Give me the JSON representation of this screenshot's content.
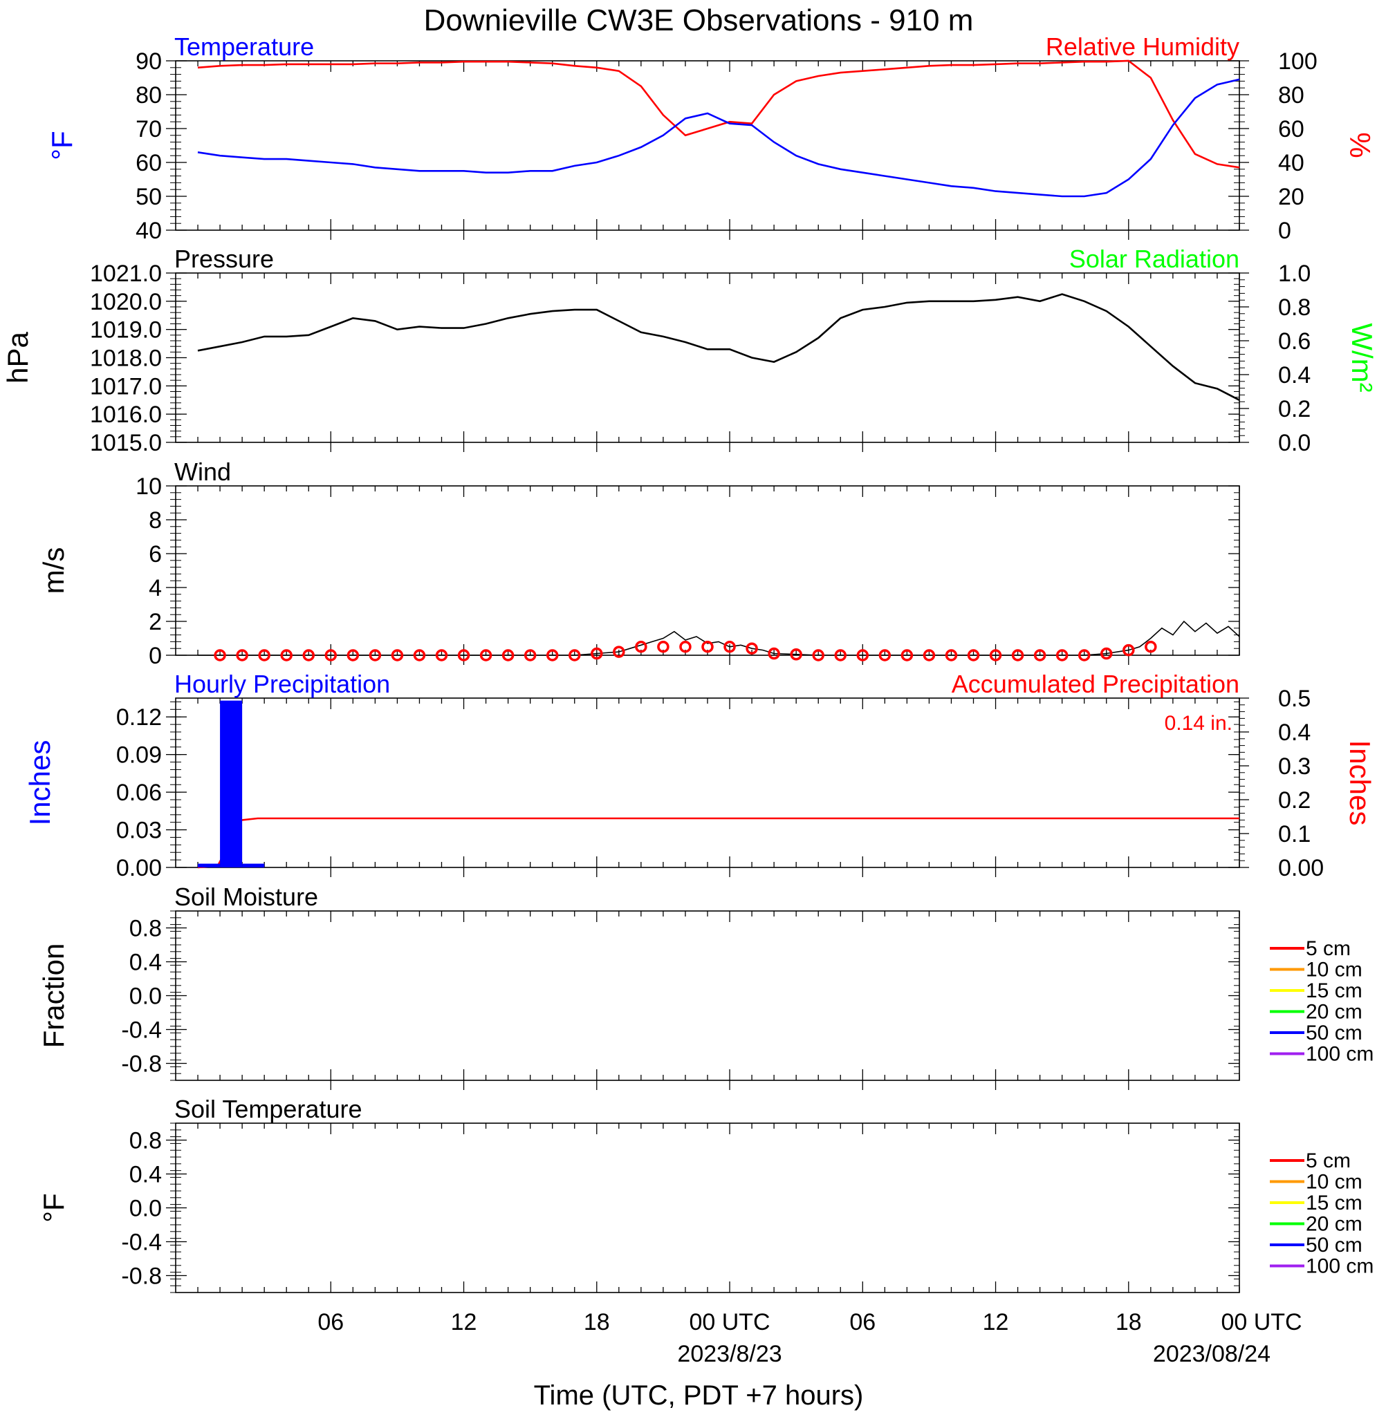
{
  "title": "Downieville CW3E Observations - 910 m",
  "xlabel": "Time (UTC, PDT +7 hours)",
  "x_axis": {
    "tick_labels": [
      "06",
      "12",
      "18",
      "00 UTC",
      "06",
      "12",
      "18",
      "00 UTC"
    ],
    "tick_hours": [
      6,
      12,
      18,
      24,
      30,
      36,
      42,
      48
    ],
    "date_labels": [
      "2023/8/23",
      "2023/08/24"
    ],
    "range_hours": [
      -1,
      47
    ]
  },
  "colors": {
    "temperature": "#0000ff",
    "humidity": "#ff0000",
    "pressure": "#000000",
    "solar": "#00ff00"
  },
  "chart_data": [
    {
      "type": "line",
      "panel": "temperature-humidity",
      "left_label": "Temperature",
      "right_label": "Relative Humidity",
      "yaxis_left": {
        "unit": "°F",
        "ticks": [
          "90",
          "80",
          "70",
          "60",
          "50",
          "40"
        ],
        "ylim": [
          40,
          90
        ]
      },
      "yaxis_right": {
        "unit": "%",
        "ticks": [
          "100",
          "80",
          "60",
          "40",
          "20",
          "0"
        ],
        "ylim": [
          0,
          100
        ]
      },
      "series": [
        {
          "name": "Temperature",
          "axis": "left",
          "color": "#0000ff",
          "x": [
            0,
            1,
            2,
            3,
            4,
            5,
            6,
            7,
            8,
            9,
            10,
            11,
            12,
            13,
            14,
            15,
            16,
            17,
            18,
            19,
            20,
            21,
            22,
            23,
            24,
            25,
            26,
            27,
            28,
            29,
            30,
            31,
            32,
            33,
            34,
            35,
            36,
            37,
            38,
            39,
            40,
            41,
            42,
            43,
            44,
            45,
            46,
            47
          ],
          "y": [
            63,
            62,
            61.5,
            61,
            61,
            60.5,
            60,
            59.5,
            58.5,
            58,
            57.5,
            57.5,
            57.5,
            57,
            57,
            57.5,
            57.5,
            59,
            60,
            62,
            64.5,
            68,
            73,
            74.5,
            71.5,
            71,
            66,
            62,
            59.5,
            58,
            57,
            56,
            55,
            54,
            53,
            52.5,
            51.5,
            51,
            50.5,
            50,
            50,
            51,
            55,
            61,
            71,
            79,
            83,
            84.5
          ]
        },
        {
          "name": "Relative Humidity",
          "axis": "right",
          "color": "#ff0000",
          "x": [
            0,
            1,
            2,
            3,
            4,
            5,
            6,
            7,
            8,
            9,
            10,
            11,
            12,
            13,
            14,
            15,
            16,
            17,
            18,
            19,
            20,
            21,
            22,
            23,
            24,
            25,
            26,
            27,
            28,
            29,
            30,
            31,
            32,
            33,
            34,
            35,
            36,
            37,
            38,
            39,
            40,
            41,
            42,
            43,
            44,
            45,
            46,
            47
          ],
          "y": [
            96,
            97,
            97.5,
            97.5,
            98,
            98,
            98,
            98,
            98.5,
            98.5,
            99,
            99,
            99.5,
            99.5,
            99.5,
            99,
            98.5,
            97,
            96,
            94,
            85,
            68,
            56,
            60,
            64,
            63,
            80,
            88,
            91,
            93,
            94,
            95,
            96,
            97,
            97.5,
            97.5,
            98,
            98.5,
            98.5,
            99,
            99.5,
            99.5,
            100,
            90,
            65,
            45,
            39,
            37
          ]
        }
      ]
    },
    {
      "type": "line",
      "panel": "pressure",
      "left_label": "Pressure",
      "right_label": "Solar Radiation",
      "yaxis_left": {
        "unit": "hPa",
        "ticks": [
          "1021.0",
          "1020.0",
          "1019.0",
          "1018.0",
          "1017.0",
          "1016.0",
          "1015.0"
        ],
        "ylim": [
          1015,
          1021
        ]
      },
      "yaxis_right": {
        "unit": "W/m²",
        "ticks": [
          "1.0",
          "0.8",
          "0.6",
          "0.4",
          "0.2",
          "0.0"
        ],
        "ylim": [
          0,
          1
        ]
      },
      "series": [
        {
          "name": "Pressure",
          "color": "#000000",
          "x": [
            0,
            1,
            2,
            3,
            4,
            5,
            6,
            7,
            8,
            9,
            10,
            11,
            12,
            13,
            14,
            15,
            16,
            17,
            18,
            19,
            20,
            21,
            22,
            23,
            24,
            25,
            26,
            27,
            28,
            29,
            30,
            31,
            32,
            33,
            34,
            35,
            36,
            37,
            38,
            39,
            40,
            41,
            42,
            43,
            44,
            45,
            46,
            47
          ],
          "y": [
            1018.25,
            1018.4,
            1018.55,
            1018.75,
            1018.75,
            1018.8,
            1019.1,
            1019.4,
            1019.3,
            1019.0,
            1019.1,
            1019.05,
            1019.05,
            1019.2,
            1019.4,
            1019.55,
            1019.65,
            1019.7,
            1019.7,
            1019.3,
            1018.9,
            1018.75,
            1018.55,
            1018.3,
            1018.3,
            1018.0,
            1017.85,
            1018.2,
            1018.7,
            1019.4,
            1019.7,
            1019.8,
            1019.95,
            1020.0,
            1020.0,
            1020.0,
            1020.05,
            1020.15,
            1020.0,
            1020.25,
            1020.0,
            1019.65,
            1019.1,
            1018.4,
            1017.7,
            1017.1,
            1016.9,
            1016.5
          ]
        }
      ]
    },
    {
      "type": "line",
      "panel": "wind",
      "left_label": "Wind",
      "yaxis_left": {
        "unit": "m/s",
        "ticks": [
          "10",
          "8",
          "6",
          "4",
          "2",
          "0"
        ],
        "ylim": [
          0,
          10
        ]
      },
      "series": [
        {
          "name": "Wind",
          "color": "#000000",
          "x": [
            0,
            2,
            4,
            6,
            8,
            10,
            12,
            14,
            16,
            17,
            18,
            19,
            19.5,
            20,
            20.5,
            21,
            21.5,
            22,
            22.5,
            23,
            23.5,
            24,
            24.5,
            25,
            25.5,
            26,
            28,
            30,
            32,
            34,
            36,
            38,
            40,
            41,
            41.5,
            42,
            42.5,
            43,
            43.5,
            44,
            44.5,
            45,
            45.5,
            46,
            46.5,
            47
          ],
          "y": [
            0,
            0,
            0,
            0,
            0,
            0,
            0,
            0,
            0,
            0,
            0.1,
            0.2,
            0.4,
            0.6,
            0.8,
            1.0,
            1.4,
            0.9,
            1.1,
            0.7,
            0.8,
            0.5,
            0.6,
            0.4,
            0.3,
            0.1,
            0,
            0,
            0,
            0,
            0,
            0,
            0,
            0.1,
            0.2,
            0.3,
            0.5,
            1.0,
            1.6,
            1.2,
            2.0,
            1.4,
            1.9,
            1.3,
            1.7,
            1.1
          ]
        }
      ]
    },
    {
      "type": "bar",
      "panel": "precipitation",
      "left_label": "Hourly Precipitation",
      "right_label": "Accumulated Precipitation",
      "total_label": "0.14 in.",
      "yaxis_left": {
        "unit": "Inches",
        "ticks": [
          "0.12",
          "0.09",
          "0.06",
          "0.03",
          "0.00"
        ],
        "ylim": [
          0,
          0.135
        ]
      },
      "yaxis_right": {
        "unit": "Inches",
        "ticks": [
          "0.5",
          "0.4",
          "0.3",
          "0.2",
          "0.1",
          "0.00"
        ],
        "ylim": [
          0,
          0.5
        ]
      },
      "series": [
        {
          "name": "Hourly Precipitation",
          "color": "#0000ff",
          "x": [
            0,
            1,
            2
          ],
          "values": [
            0.003,
            0.133,
            0.003
          ]
        },
        {
          "name": "Accumulated Precipitation",
          "color": "#ff0000",
          "type": "line",
          "x": [
            0,
            0.9,
            1.1,
            1.3,
            1.5,
            1.7,
            2,
            2.7,
            47
          ],
          "y": [
            0,
            0.005,
            0.03,
            0.08,
            0.12,
            0.14,
            0.14,
            0.145,
            0.145
          ]
        }
      ]
    },
    {
      "type": "line",
      "panel": "soil-moisture",
      "left_label": "Soil Moisture",
      "yaxis_left": {
        "unit": "Fraction",
        "ticks": [
          "0.8",
          "0.4",
          "0.0",
          "-0.4",
          "-0.8"
        ],
        "ylim": [
          -1,
          1
        ]
      },
      "legend": [
        {
          "label": "5 cm",
          "color": "#ff0000"
        },
        {
          "label": "10 cm",
          "color": "#ff9900"
        },
        {
          "label": "15 cm",
          "color": "#ffff00"
        },
        {
          "label": "20 cm",
          "color": "#00ff00"
        },
        {
          "label": "50 cm",
          "color": "#0000ff"
        },
        {
          "label": "100 cm",
          "color": "#a020f0"
        }
      ],
      "series": []
    },
    {
      "type": "line",
      "panel": "soil-temperature",
      "left_label": "Soil Temperature",
      "yaxis_left": {
        "unit": "°F",
        "ticks": [
          "0.8",
          "0.4",
          "0.0",
          "-0.4",
          "-0.8"
        ],
        "ylim": [
          -1,
          1
        ]
      },
      "legend": [
        {
          "label": "5 cm",
          "color": "#ff0000"
        },
        {
          "label": "10 cm",
          "color": "#ff9900"
        },
        {
          "label": "15 cm",
          "color": "#ffff00"
        },
        {
          "label": "20 cm",
          "color": "#00ff00"
        },
        {
          "label": "50 cm",
          "color": "#0000ff"
        },
        {
          "label": "100 cm",
          "color": "#a020f0"
        }
      ],
      "series": []
    }
  ]
}
